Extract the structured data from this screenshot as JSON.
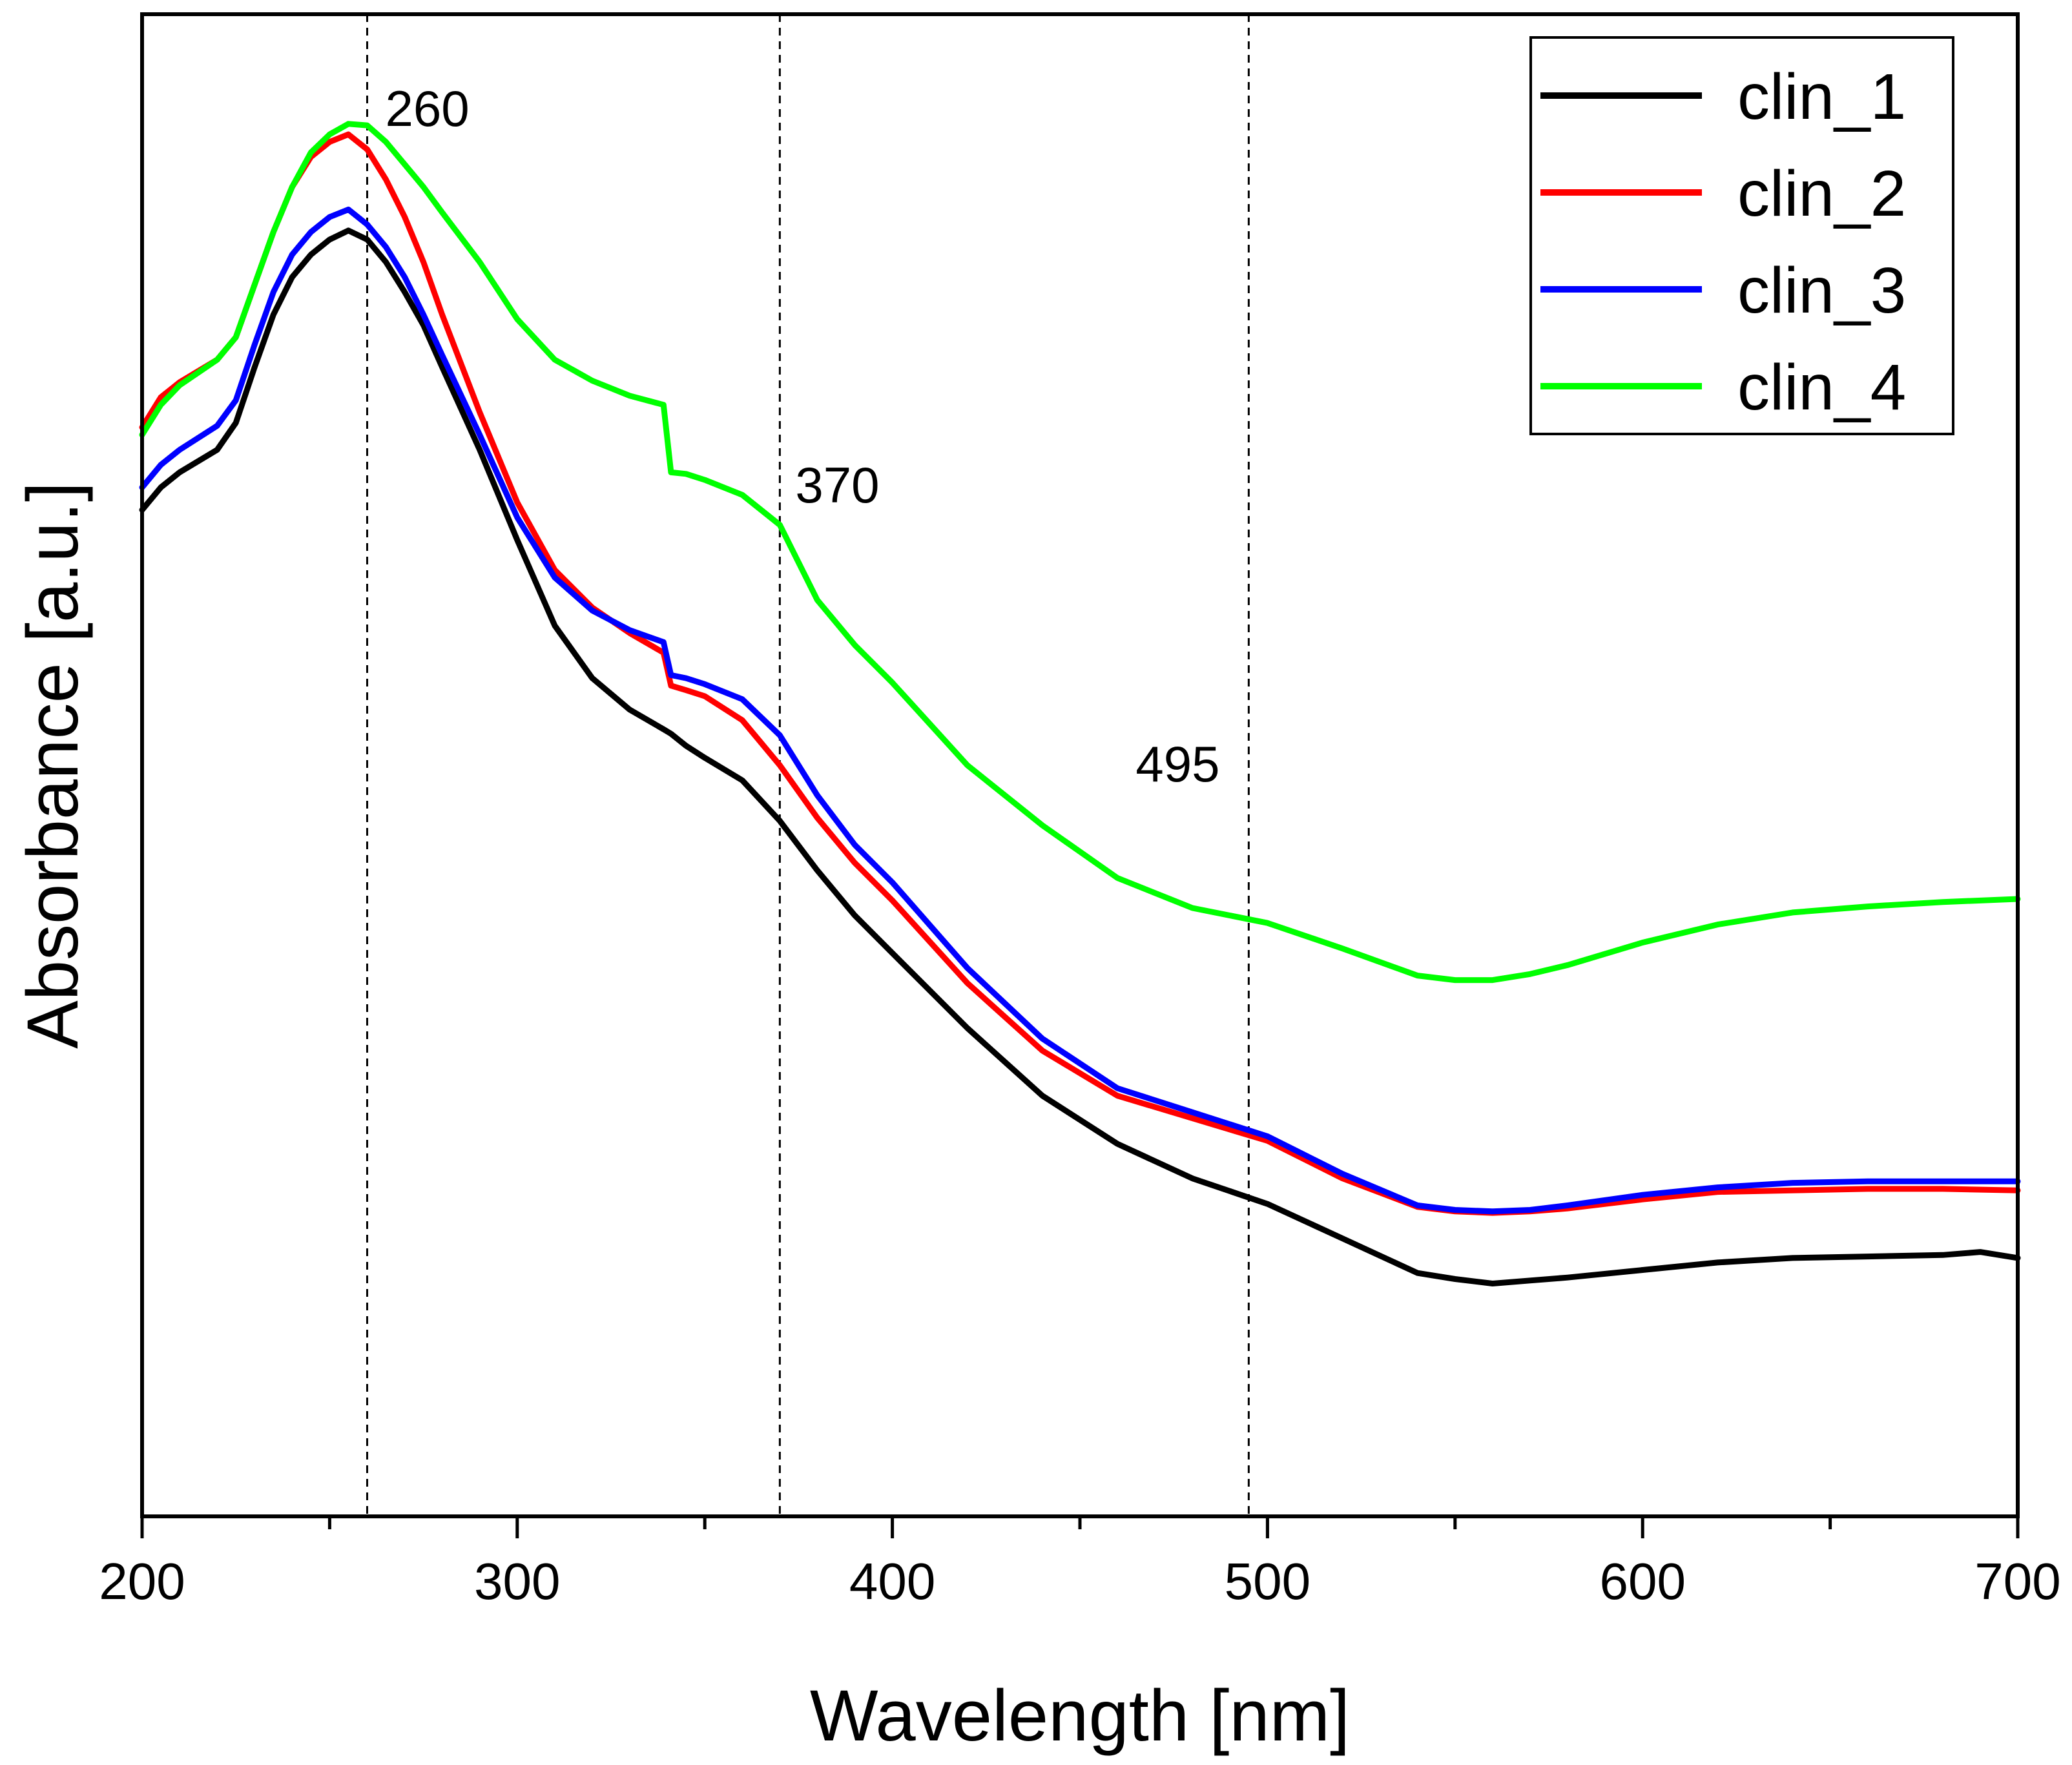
{
  "chart_data": {
    "type": "line",
    "title": "",
    "xlabel": "Wavelength [nm]",
    "ylabel": "Absorbance [a.u.]",
    "xlim": [
      200,
      700
    ],
    "ylim": [
      0,
      100
    ],
    "xticks": [
      200,
      300,
      400,
      500,
      600,
      700
    ],
    "y_tick_labels": "none",
    "grid": false,
    "legend_position": "top-right",
    "reference_lines": [
      {
        "x": 260,
        "label": "260",
        "style": "dashed"
      },
      {
        "x": 370,
        "label": "370",
        "style": "dashed"
      },
      {
        "x": 495,
        "label": "495",
        "style": "dashed"
      }
    ],
    "series": [
      {
        "name": "clin_1",
        "color": "#000000",
        "x": [
          200,
          205,
          210,
          220,
          225,
          230,
          235,
          240,
          245,
          250,
          255,
          260,
          265,
          270,
          275,
          280,
          290,
          300,
          310,
          320,
          330,
          339,
          341,
          345,
          350,
          360,
          370,
          380,
          390,
          400,
          420,
          440,
          460,
          480,
          500,
          520,
          540,
          550,
          560,
          570,
          580,
          600,
          620,
          640,
          660,
          680,
          690,
          700
        ],
        "y": [
          67.0,
          68.5,
          69.5,
          71.0,
          72.8,
          76.5,
          80.0,
          82.5,
          84.0,
          85.0,
          85.6,
          85.0,
          83.5,
          81.5,
          79.3,
          76.5,
          71.0,
          65.0,
          59.3,
          55.8,
          53.7,
          52.4,
          52.1,
          51.3,
          50.5,
          49.0,
          46.3,
          43.0,
          40.0,
          37.5,
          32.5,
          28.0,
          24.8,
          22.5,
          20.8,
          18.5,
          16.2,
          15.8,
          15.5,
          15.7,
          15.9,
          16.4,
          16.9,
          17.2,
          17.3,
          17.4,
          17.6,
          17.2
        ]
      },
      {
        "name": "clin_2",
        "color": "#ff0000",
        "x": [
          200,
          205,
          210,
          220,
          225,
          230,
          235,
          240,
          245,
          250,
          255,
          260,
          265,
          270,
          275,
          280,
          290,
          300,
          310,
          320,
          330,
          339,
          341,
          345,
          350,
          360,
          370,
          380,
          390,
          400,
          420,
          440,
          460,
          480,
          500,
          520,
          540,
          550,
          560,
          570,
          580,
          600,
          620,
          640,
          660,
          680,
          700
        ],
        "y": [
          72.5,
          74.5,
          75.5,
          77.0,
          78.5,
          82.0,
          85.5,
          88.5,
          90.5,
          91.5,
          92.0,
          91.0,
          89.0,
          86.5,
          83.5,
          80.0,
          73.5,
          67.5,
          63.0,
          60.5,
          58.8,
          57.5,
          55.3,
          55.0,
          54.6,
          53.0,
          50.0,
          46.5,
          43.5,
          41.0,
          35.5,
          31.0,
          28.0,
          26.5,
          25.0,
          22.5,
          20.6,
          20.3,
          20.2,
          20.3,
          20.5,
          21.1,
          21.6,
          21.7,
          21.8,
          21.8,
          21.7
        ]
      },
      {
        "name": "clin_3",
        "color": "#0000ff",
        "x": [
          200,
          205,
          210,
          220,
          225,
          230,
          235,
          240,
          245,
          250,
          255,
          260,
          265,
          270,
          275,
          280,
          290,
          300,
          310,
          320,
          330,
          339,
          341,
          345,
          350,
          360,
          370,
          380,
          390,
          400,
          420,
          440,
          460,
          480,
          500,
          520,
          540,
          550,
          560,
          570,
          580,
          600,
          620,
          640,
          660,
          680,
          700
        ],
        "y": [
          68.5,
          70.0,
          71.0,
          72.6,
          74.3,
          78.0,
          81.5,
          84.0,
          85.5,
          86.5,
          87.0,
          86.0,
          84.5,
          82.5,
          80.0,
          77.3,
          72.0,
          66.5,
          62.5,
          60.3,
          59.0,
          58.2,
          56.0,
          55.8,
          55.4,
          54.4,
          52.0,
          48.0,
          44.7,
          42.2,
          36.5,
          31.8,
          28.5,
          26.9,
          25.3,
          22.8,
          20.7,
          20.4,
          20.3,
          20.4,
          20.7,
          21.4,
          21.9,
          22.2,
          22.3,
          22.3,
          22.3
        ]
      },
      {
        "name": "clin_4",
        "color": "#00ff00",
        "x": [
          200,
          205,
          210,
          220,
          225,
          230,
          235,
          240,
          245,
          250,
          255,
          260,
          265,
          270,
          275,
          280,
          290,
          300,
          310,
          320,
          330,
          339,
          341,
          345,
          350,
          360,
          370,
          375,
          380,
          390,
          400,
          420,
          440,
          460,
          480,
          500,
          520,
          540,
          550,
          560,
          570,
          580,
          600,
          620,
          640,
          660,
          680,
          700
        ],
        "y": [
          72.0,
          74.0,
          75.3,
          77.0,
          78.5,
          82.0,
          85.5,
          88.5,
          90.8,
          92.0,
          92.7,
          92.6,
          91.5,
          90.0,
          88.5,
          86.8,
          83.5,
          79.7,
          77.0,
          75.6,
          74.6,
          74.0,
          69.5,
          69.4,
          69.0,
          68.0,
          66.0,
          63.5,
          61.0,
          58.0,
          55.5,
          50.0,
          46.0,
          42.5,
          40.5,
          39.5,
          37.8,
          36.0,
          35.7,
          35.7,
          36.1,
          36.7,
          38.2,
          39.4,
          40.2,
          40.6,
          40.9,
          41.1
        ]
      }
    ]
  }
}
